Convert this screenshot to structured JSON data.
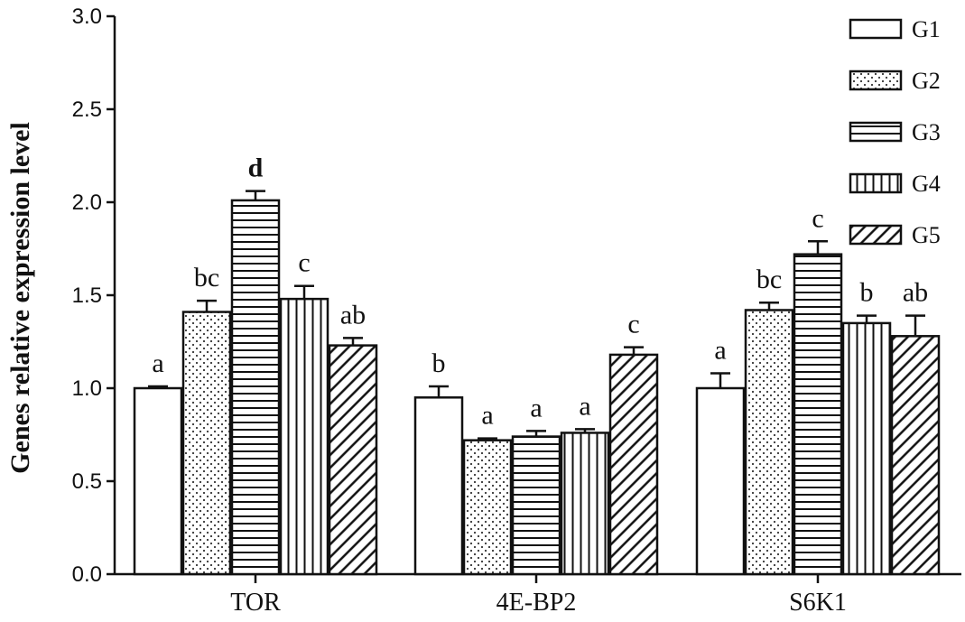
{
  "chart_data": {
    "type": "bar",
    "ylabel": "Genes relative expression level",
    "xlabel": "",
    "ylim": [
      0,
      3.0
    ],
    "yticks": [
      "0.0",
      "0.5",
      "1.0",
      "1.5",
      "2.0",
      "2.5",
      "3.0"
    ],
    "categories": [
      "TOR",
      "4E-BP2",
      "S6K1"
    ],
    "legend_position": "top-right",
    "grid": false,
    "series": [
      {
        "name": "G1",
        "pattern": "blank",
        "values": [
          1.0,
          0.95,
          1.0
        ],
        "errors": [
          0.01,
          0.06,
          0.08
        ],
        "letters": [
          "a",
          "b",
          "a"
        ]
      },
      {
        "name": "G2",
        "pattern": "dots",
        "values": [
          1.41,
          0.72,
          1.42
        ],
        "errors": [
          0.06,
          0.01,
          0.04
        ],
        "letters": [
          "bc",
          "a",
          "bc"
        ]
      },
      {
        "name": "G3",
        "pattern": "horizontal-lines",
        "values": [
          2.01,
          0.74,
          1.72
        ],
        "errors": [
          0.05,
          0.03,
          0.07
        ],
        "letters": [
          "d",
          "a",
          "c"
        ]
      },
      {
        "name": "G4",
        "pattern": "vertical-lines",
        "values": [
          1.48,
          0.76,
          1.35
        ],
        "errors": [
          0.07,
          0.02,
          0.04
        ],
        "letters": [
          "c",
          "a",
          "b"
        ]
      },
      {
        "name": "G5",
        "pattern": "diagonal-lines",
        "values": [
          1.23,
          1.18,
          1.28
        ],
        "errors": [
          0.04,
          0.04,
          0.11
        ],
        "letters": [
          "ab",
          "c",
          "ab"
        ]
      }
    ]
  }
}
